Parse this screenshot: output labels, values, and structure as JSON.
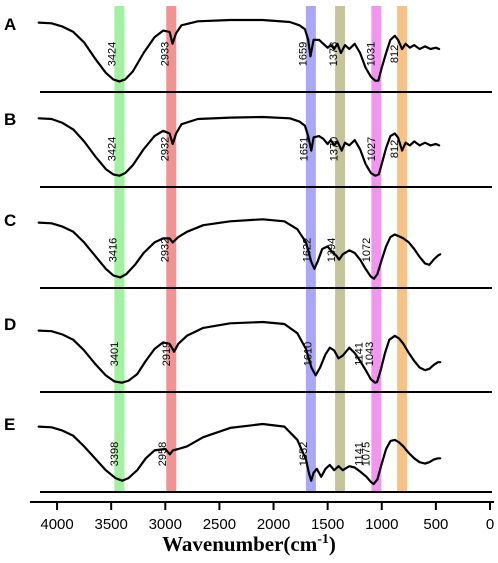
{
  "chart_data": {
    "type": "line",
    "xlabel": "Wavenumber(cm",
    "xlabel_sup": "-1",
    "xlabel_close": ")",
    "x_reversed": true,
    "xlim": [
      4250,
      0
    ],
    "x_ticks": [
      4000,
      3500,
      3000,
      2500,
      2000,
      1500,
      1000,
      500,
      0
    ],
    "highlight_bands": [
      {
        "center": 3424,
        "color": "#90ee90"
      },
      {
        "center": 2945,
        "color": "#f08080"
      },
      {
        "center": 1655,
        "color": "#9999f5"
      },
      {
        "center": 1385,
        "color": "#bdb98a"
      },
      {
        "center": 1050,
        "color": "#ee82ee"
      },
      {
        "center": 812,
        "color": "#f5b870"
      }
    ],
    "series": [
      {
        "label": "A",
        "peaks": [
          {
            "x": 3424,
            "label": "3424"
          },
          {
            "x": 2933,
            "label": "2933"
          },
          {
            "x": 1659,
            "label": "1659"
          },
          {
            "x": 1378,
            "label": "1378"
          },
          {
            "x": 1031,
            "label": "1031"
          },
          {
            "x": 812,
            "label": "812"
          }
        ],
        "points": [
          [
            4170,
            0.04
          ],
          [
            4050,
            0.05
          ],
          [
            3950,
            0.1
          ],
          [
            3850,
            0.18
          ],
          [
            3750,
            0.34
          ],
          [
            3650,
            0.58
          ],
          [
            3550,
            0.8
          ],
          [
            3480,
            0.9
          ],
          [
            3424,
            0.93
          ],
          [
            3370,
            0.9
          ],
          [
            3300,
            0.78
          ],
          [
            3200,
            0.5
          ],
          [
            3100,
            0.26
          ],
          [
            3020,
            0.16
          ],
          [
            2960,
            0.18
          ],
          [
            2933,
            0.36
          ],
          [
            2900,
            0.2
          ],
          [
            2850,
            0.08
          ],
          [
            2700,
            0.02
          ],
          [
            2400,
            0
          ],
          [
            2100,
            0
          ],
          [
            1850,
            0.03
          ],
          [
            1760,
            0.08
          ],
          [
            1710,
            0.14
          ],
          [
            1680,
            0.3
          ],
          [
            1659,
            0.55
          ],
          [
            1630,
            0.3
          ],
          [
            1580,
            0.3
          ],
          [
            1540,
            0.36
          ],
          [
            1500,
            0.42
          ],
          [
            1470,
            0.38
          ],
          [
            1440,
            0.44
          ],
          [
            1410,
            0.36
          ],
          [
            1378,
            0.5
          ],
          [
            1340,
            0.38
          ],
          [
            1300,
            0.44
          ],
          [
            1250,
            0.36
          ],
          [
            1200,
            0.5
          ],
          [
            1150,
            0.72
          ],
          [
            1100,
            0.86
          ],
          [
            1060,
            0.92
          ],
          [
            1031,
            0.92
          ],
          [
            1000,
            0.72
          ],
          [
            960,
            0.5
          ],
          [
            920,
            0.3
          ],
          [
            880,
            0.24
          ],
          [
            850,
            0.3
          ],
          [
            812,
            0.44
          ],
          [
            780,
            0.36
          ],
          [
            740,
            0.42
          ],
          [
            700,
            0.38
          ],
          [
            650,
            0.44
          ],
          [
            600,
            0.4
          ],
          [
            550,
            0.44
          ],
          [
            500,
            0.42
          ],
          [
            470,
            0.44
          ]
        ]
      },
      {
        "label": "B",
        "peaks": [
          {
            "x": 3424,
            "label": "3424"
          },
          {
            "x": 2932,
            "label": "2932"
          },
          {
            "x": 1651,
            "label": "1651"
          },
          {
            "x": 1370,
            "label": "1370"
          },
          {
            "x": 1027,
            "label": "1027"
          },
          {
            "x": 812,
            "label": "812"
          }
        ],
        "points": [
          [
            4170,
            0.05
          ],
          [
            4050,
            0.06
          ],
          [
            3950,
            0.12
          ],
          [
            3850,
            0.22
          ],
          [
            3750,
            0.4
          ],
          [
            3650,
            0.62
          ],
          [
            3550,
            0.82
          ],
          [
            3480,
            0.9
          ],
          [
            3424,
            0.92
          ],
          [
            3370,
            0.88
          ],
          [
            3300,
            0.76
          ],
          [
            3200,
            0.52
          ],
          [
            3100,
            0.32
          ],
          [
            3020,
            0.24
          ],
          [
            2960,
            0.28
          ],
          [
            2932,
            0.44
          ],
          [
            2900,
            0.28
          ],
          [
            2850,
            0.14
          ],
          [
            2700,
            0.06
          ],
          [
            2400,
            0.04
          ],
          [
            2100,
            0.03
          ],
          [
            1850,
            0.05
          ],
          [
            1760,
            0.1
          ],
          [
            1710,
            0.16
          ],
          [
            1680,
            0.32
          ],
          [
            1651,
            0.54
          ],
          [
            1630,
            0.34
          ],
          [
            1580,
            0.32
          ],
          [
            1540,
            0.36
          ],
          [
            1500,
            0.44
          ],
          [
            1470,
            0.38
          ],
          [
            1440,
            0.46
          ],
          [
            1410,
            0.4
          ],
          [
            1370,
            0.54
          ],
          [
            1340,
            0.42
          ],
          [
            1300,
            0.46
          ],
          [
            1250,
            0.38
          ],
          [
            1200,
            0.52
          ],
          [
            1150,
            0.74
          ],
          [
            1100,
            0.88
          ],
          [
            1060,
            0.92
          ],
          [
            1027,
            0.9
          ],
          [
            1000,
            0.74
          ],
          [
            960,
            0.5
          ],
          [
            920,
            0.32
          ],
          [
            880,
            0.28
          ],
          [
            850,
            0.34
          ],
          [
            812,
            0.54
          ],
          [
            780,
            0.42
          ],
          [
            740,
            0.46
          ],
          [
            700,
            0.4
          ],
          [
            650,
            0.46
          ],
          [
            600,
            0.42
          ],
          [
            550,
            0.46
          ],
          [
            500,
            0.44
          ],
          [
            470,
            0.46
          ]
        ]
      },
      {
        "label": "C",
        "peaks": [
          {
            "x": 3416,
            "label": "3416"
          },
          {
            "x": 2932,
            "label": "2932"
          },
          {
            "x": 1622,
            "label": "1622"
          },
          {
            "x": 1394,
            "label": "1394"
          },
          {
            "x": 1072,
            "label": "1072"
          }
        ],
        "points": [
          [
            4170,
            0.1
          ],
          [
            4050,
            0.11
          ],
          [
            3950,
            0.16
          ],
          [
            3850,
            0.24
          ],
          [
            3750,
            0.4
          ],
          [
            3650,
            0.6
          ],
          [
            3550,
            0.8
          ],
          [
            3480,
            0.9
          ],
          [
            3416,
            0.93
          ],
          [
            3360,
            0.88
          ],
          [
            3280,
            0.74
          ],
          [
            3200,
            0.56
          ],
          [
            3100,
            0.4
          ],
          [
            3020,
            0.34
          ],
          [
            2960,
            0.34
          ],
          [
            2932,
            0.4
          ],
          [
            2880,
            0.32
          ],
          [
            2800,
            0.24
          ],
          [
            2650,
            0.14
          ],
          [
            2400,
            0.08
          ],
          [
            2100,
            0.05
          ],
          [
            1900,
            0.08
          ],
          [
            1780,
            0.2
          ],
          [
            1700,
            0.4
          ],
          [
            1650,
            0.7
          ],
          [
            1622,
            0.8
          ],
          [
            1590,
            0.68
          ],
          [
            1550,
            0.5
          ],
          [
            1500,
            0.46
          ],
          [
            1450,
            0.56
          ],
          [
            1420,
            0.6
          ],
          [
            1394,
            0.66
          ],
          [
            1360,
            0.58
          ],
          [
            1300,
            0.52
          ],
          [
            1250,
            0.56
          ],
          [
            1200,
            0.66
          ],
          [
            1150,
            0.8
          ],
          [
            1100,
            0.92
          ],
          [
            1072,
            0.95
          ],
          [
            1040,
            0.88
          ],
          [
            1000,
            0.66
          ],
          [
            960,
            0.46
          ],
          [
            920,
            0.32
          ],
          [
            880,
            0.28
          ],
          [
            850,
            0.3
          ],
          [
            800,
            0.34
          ],
          [
            750,
            0.4
          ],
          [
            700,
            0.5
          ],
          [
            650,
            0.62
          ],
          [
            600,
            0.72
          ],
          [
            560,
            0.74
          ],
          [
            520,
            0.66
          ],
          [
            480,
            0.6
          ],
          [
            460,
            0.58
          ]
        ]
      },
      {
        "label": "D",
        "peaks": [
          {
            "x": 3401,
            "label": "3401"
          },
          {
            "x": 2919,
            "label": "2919"
          },
          {
            "x": 1610,
            "label": "1610"
          },
          {
            "x": 1141,
            "label": "1141"
          },
          {
            "x": 1043,
            "label": "1043"
          }
        ],
        "points": [
          [
            4170,
            0.16
          ],
          [
            4050,
            0.17
          ],
          [
            3950,
            0.22
          ],
          [
            3850,
            0.3
          ],
          [
            3750,
            0.46
          ],
          [
            3650,
            0.66
          ],
          [
            3550,
            0.84
          ],
          [
            3470,
            0.93
          ],
          [
            3401,
            0.95
          ],
          [
            3340,
            0.92
          ],
          [
            3260,
            0.82
          ],
          [
            3180,
            0.62
          ],
          [
            3100,
            0.44
          ],
          [
            3020,
            0.34
          ],
          [
            2960,
            0.36
          ],
          [
            2919,
            0.48
          ],
          [
            2880,
            0.36
          ],
          [
            2800,
            0.24
          ],
          [
            2650,
            0.12
          ],
          [
            2400,
            0.05
          ],
          [
            2100,
            0.03
          ],
          [
            1900,
            0.06
          ],
          [
            1780,
            0.2
          ],
          [
            1700,
            0.44
          ],
          [
            1650,
            0.72
          ],
          [
            1610,
            0.84
          ],
          [
            1570,
            0.72
          ],
          [
            1520,
            0.52
          ],
          [
            1480,
            0.42
          ],
          [
            1440,
            0.46
          ],
          [
            1400,
            0.58
          ],
          [
            1360,
            0.54
          ],
          [
            1300,
            0.42
          ],
          [
            1250,
            0.5
          ],
          [
            1200,
            0.62
          ],
          [
            1141,
            0.78
          ],
          [
            1100,
            0.9
          ],
          [
            1060,
            0.95
          ],
          [
            1043,
            0.94
          ],
          [
            1010,
            0.76
          ],
          [
            970,
            0.5
          ],
          [
            930,
            0.3
          ],
          [
            880,
            0.24
          ],
          [
            840,
            0.28
          ],
          [
            800,
            0.36
          ],
          [
            750,
            0.5
          ],
          [
            700,
            0.62
          ],
          [
            650,
            0.72
          ],
          [
            600,
            0.76
          ],
          [
            560,
            0.74
          ],
          [
            520,
            0.68
          ],
          [
            480,
            0.64
          ],
          [
            460,
            0.64
          ]
        ]
      },
      {
        "label": "E",
        "peaks": [
          {
            "x": 3398,
            "label": "3398"
          },
          {
            "x": 2958,
            "label": "2958"
          },
          {
            "x": 1652,
            "label": "1652"
          },
          {
            "x": 1141,
            "label": "1141"
          },
          {
            "x": 1075,
            "label": "1075"
          }
        ],
        "points": [
          [
            4170,
            0.1
          ],
          [
            4050,
            0.11
          ],
          [
            3950,
            0.16
          ],
          [
            3850,
            0.24
          ],
          [
            3750,
            0.4
          ],
          [
            3650,
            0.58
          ],
          [
            3550,
            0.76
          ],
          [
            3460,
            0.88
          ],
          [
            3398,
            0.92
          ],
          [
            3340,
            0.88
          ],
          [
            3260,
            0.76
          ],
          [
            3180,
            0.58
          ],
          [
            3100,
            0.46
          ],
          [
            3000,
            0.44
          ],
          [
            2958,
            0.52
          ],
          [
            2930,
            0.46
          ],
          [
            2880,
            0.44
          ],
          [
            2800,
            0.4
          ],
          [
            2650,
            0.26
          ],
          [
            2400,
            0.12
          ],
          [
            2100,
            0.06
          ],
          [
            1900,
            0.1
          ],
          [
            1780,
            0.3
          ],
          [
            1700,
            0.6
          ],
          [
            1670,
            0.82
          ],
          [
            1652,
            0.92
          ],
          [
            1630,
            0.8
          ],
          [
            1600,
            0.74
          ],
          [
            1560,
            0.86
          ],
          [
            1520,
            0.74
          ],
          [
            1480,
            0.68
          ],
          [
            1440,
            0.76
          ],
          [
            1400,
            0.7
          ],
          [
            1360,
            0.76
          ],
          [
            1300,
            0.7
          ],
          [
            1250,
            0.72
          ],
          [
            1200,
            0.78
          ],
          [
            1141,
            0.86
          ],
          [
            1100,
            0.94
          ],
          [
            1075,
            0.97
          ],
          [
            1040,
            0.9
          ],
          [
            1000,
            0.66
          ],
          [
            960,
            0.44
          ],
          [
            920,
            0.32
          ],
          [
            880,
            0.3
          ],
          [
            840,
            0.34
          ],
          [
            800,
            0.4
          ],
          [
            750,
            0.5
          ],
          [
            700,
            0.58
          ],
          [
            650,
            0.64
          ],
          [
            600,
            0.66
          ],
          [
            560,
            0.64
          ],
          [
            520,
            0.6
          ],
          [
            480,
            0.58
          ],
          [
            460,
            0.58
          ]
        ]
      }
    ]
  }
}
